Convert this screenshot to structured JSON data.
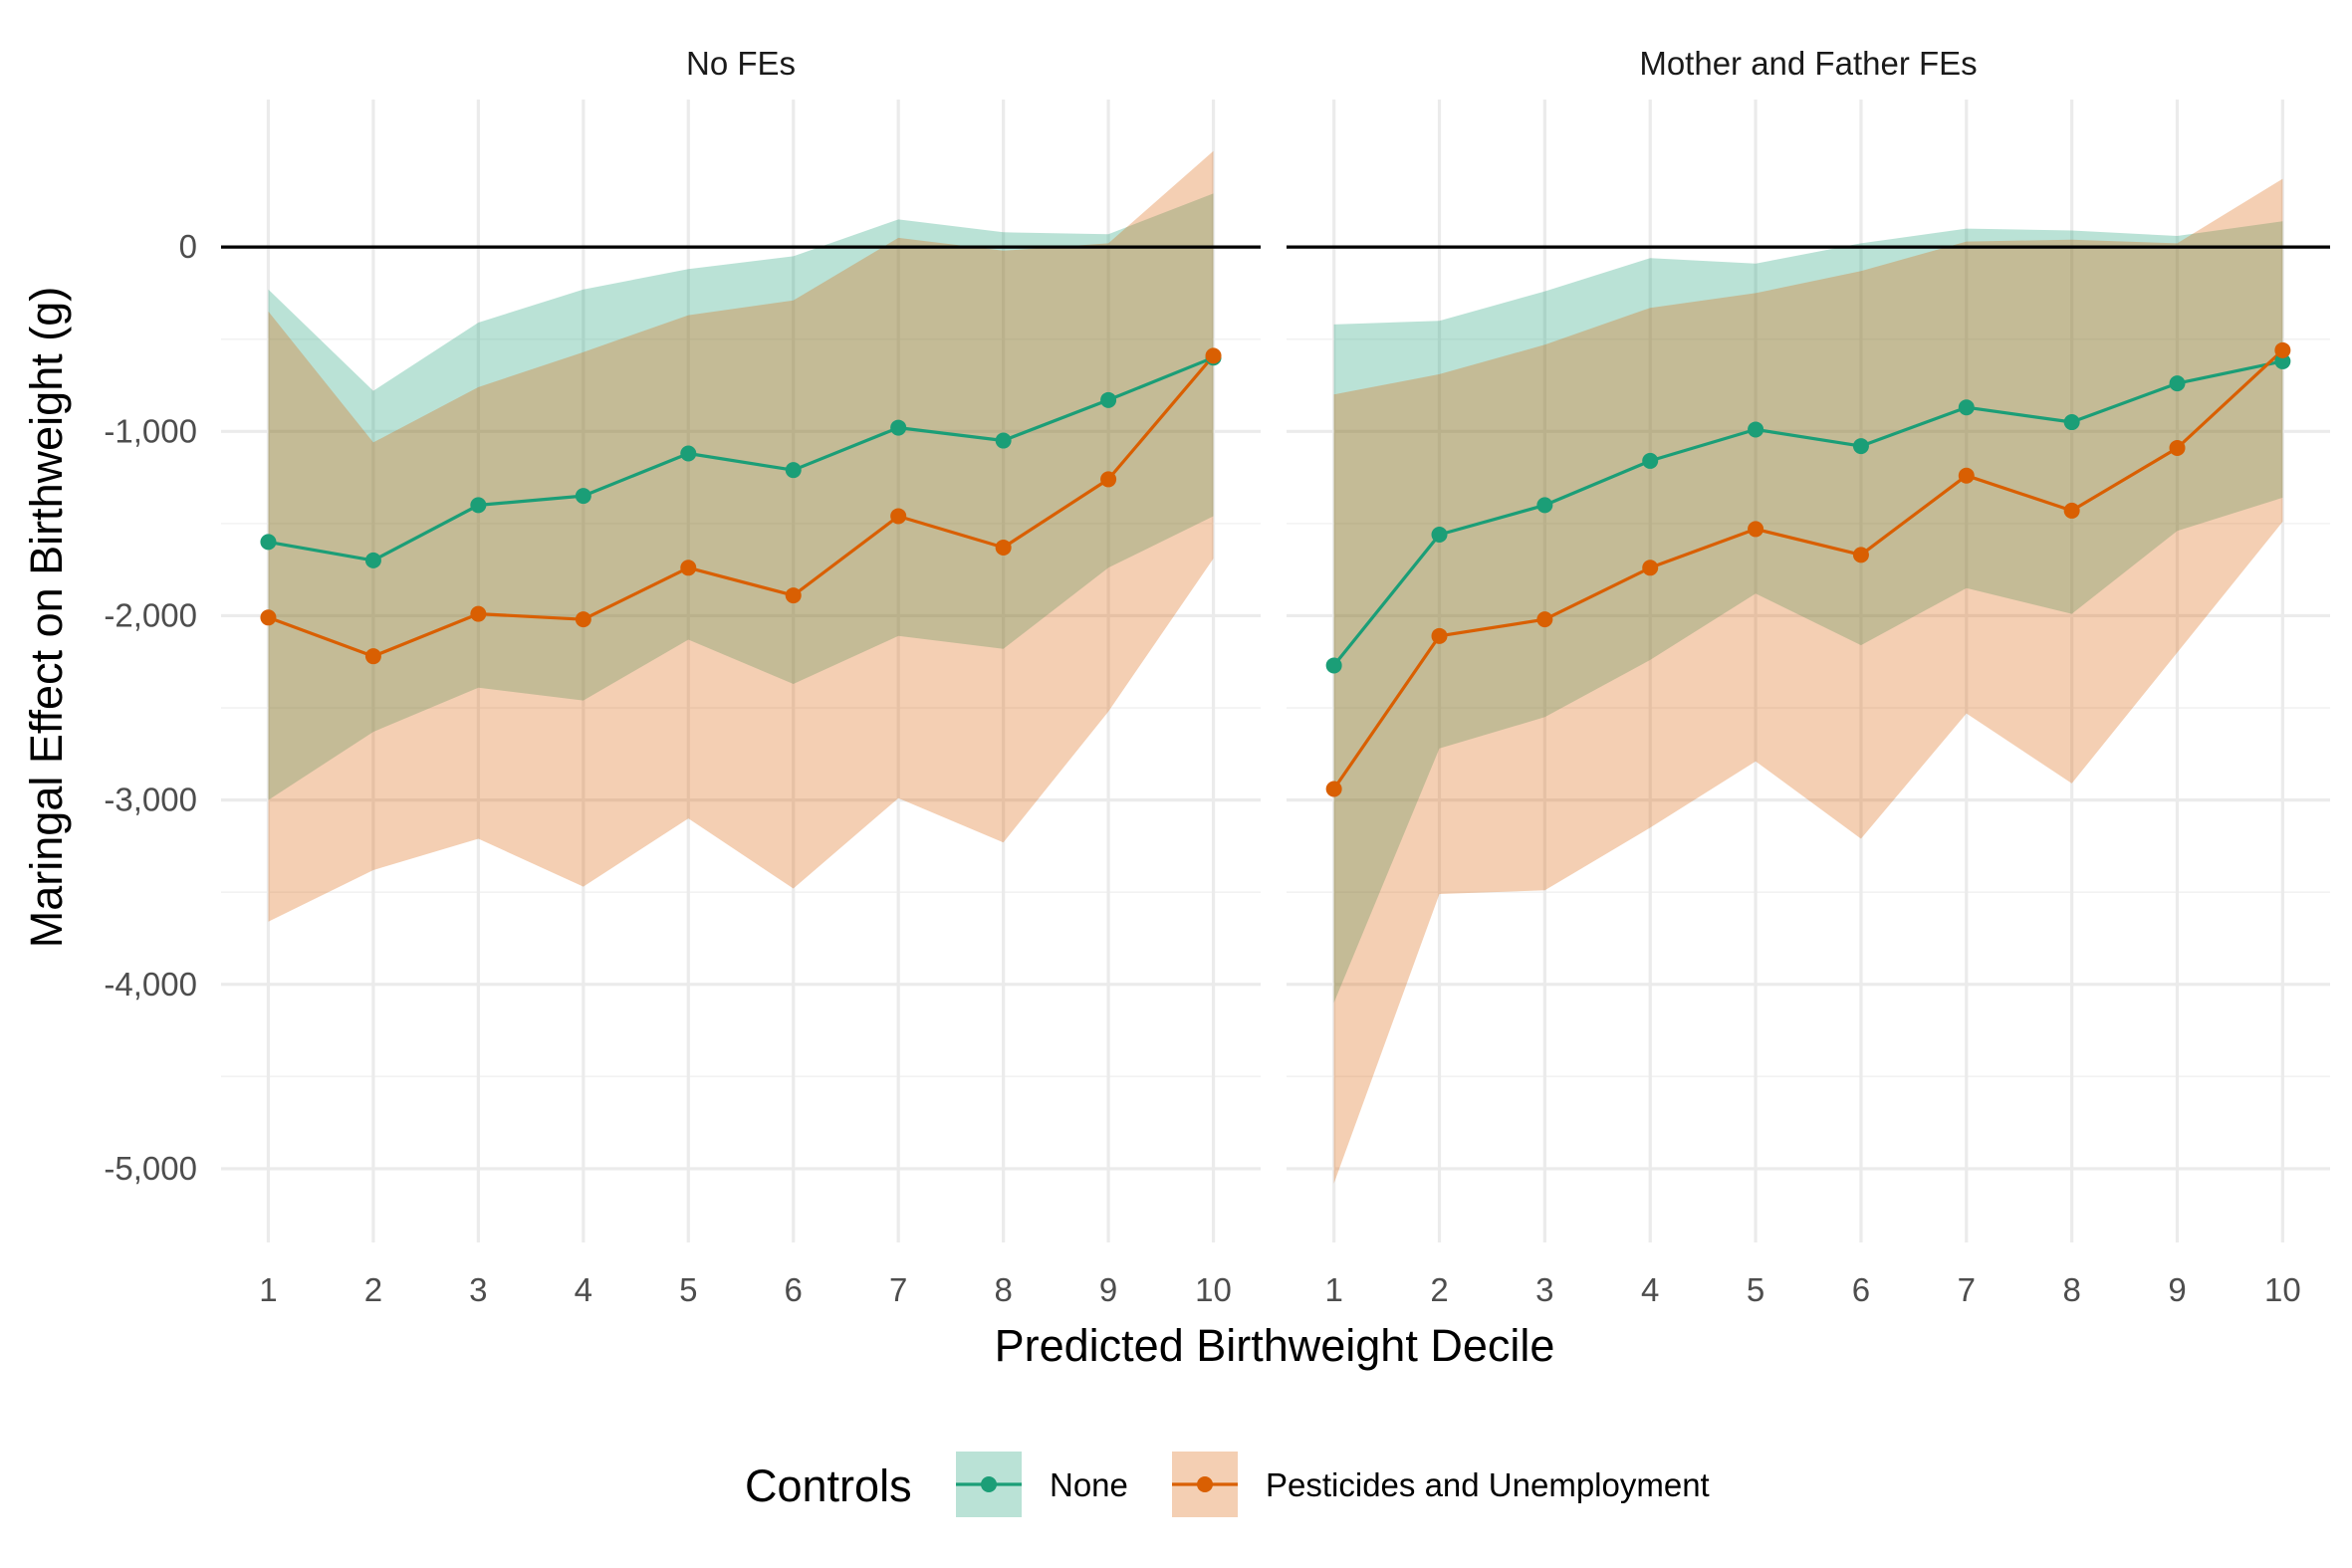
{
  "chart_data": {
    "type": "line",
    "xlabel": "Predicted Birthweight Decile",
    "ylabel": "Maringal Effect on Birthweight (g)",
    "x": [
      1,
      2,
      3,
      4,
      5,
      6,
      7,
      8,
      9,
      10
    ],
    "x_ticks": [
      "1",
      "2",
      "3",
      "4",
      "5",
      "6",
      "7",
      "8",
      "9",
      "10"
    ],
    "xlim": [
      0.55,
      10.45
    ],
    "ylim": [
      -5400,
      800
    ],
    "y_ticks": [
      0,
      -1000,
      -2000,
      -3000,
      -4000,
      -5000
    ],
    "y_tick_labels": [
      "0",
      "-1,000",
      "-2,000",
      "-3,000",
      "-4,000",
      "-5,000"
    ],
    "reference_line_y": 0,
    "grid": true,
    "legend": {
      "title": "Controls",
      "position": "bottom",
      "entries": [
        "None",
        "Pesticides and Unemployment"
      ]
    },
    "colors": {
      "None": "#1b9e77",
      "Pesticides and Unemployment": "#d95f02"
    },
    "panels": [
      {
        "title": "No FEs",
        "series": [
          {
            "name": "None",
            "values": [
              -1600,
              -1700,
              -1400,
              -1350,
              -1120,
              -1210,
              -980,
              -1050,
              -830,
              -600
            ],
            "lower": [
              -3000,
              -2630,
              -2390,
              -2460,
              -2130,
              -2370,
              -2110,
              -2180,
              -1740,
              -1460
            ],
            "upper": [
              -230,
              -780,
              -410,
              -230,
              -120,
              -50,
              150,
              80,
              70,
              290
            ]
          },
          {
            "name": "Pesticides and Unemployment",
            "values": [
              -2010,
              -2220,
              -1990,
              -2020,
              -1740,
              -1890,
              -1460,
              -1630,
              -1260,
              -590
            ],
            "lower": [
              -3660,
              -3380,
              -3210,
              -3470,
              -3100,
              -3480,
              -2990,
              -3230,
              -2520,
              -1690
            ],
            "upper": [
              -350,
              -1060,
              -760,
              -570,
              -370,
              -290,
              50,
              -20,
              20,
              520
            ]
          }
        ]
      },
      {
        "title": "Mother and Father FEs",
        "series": [
          {
            "name": "None",
            "values": [
              -2270,
              -1560,
              -1400,
              -1160,
              -990,
              -1080,
              -870,
              -950,
              -740,
              -620
            ],
            "lower": [
              -4100,
              -2720,
              -2550,
              -2240,
              -1880,
              -2160,
              -1850,
              -1990,
              -1540,
              -1360
            ],
            "upper": [
              -420,
              -400,
              -240,
              -60,
              -90,
              20,
              100,
              90,
              60,
              140
            ]
          },
          {
            "name": "Pesticides and Unemployment",
            "values": [
              -2940,
              -2110,
              -2020,
              -1740,
              -1530,
              -1670,
              -1240,
              -1430,
              -1090,
              -560
            ],
            "lower": [
              -5080,
              -3510,
              -3490,
              -3150,
              -2790,
              -3210,
              -2530,
              -2910,
              -2200,
              -1490
            ],
            "upper": [
              -800,
              -690,
              -530,
              -330,
              -250,
              -130,
              30,
              40,
              20,
              370
            ]
          }
        ]
      }
    ]
  }
}
